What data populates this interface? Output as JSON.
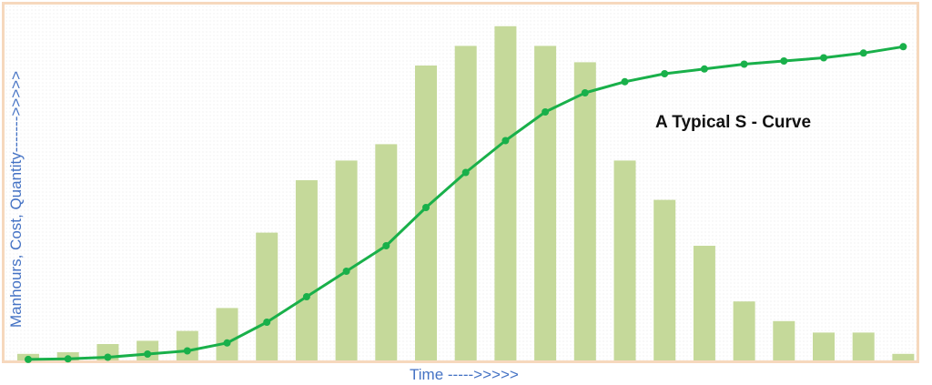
{
  "chart_data": {
    "type": "bar",
    "title": "",
    "xlabel": "Time ----->>>>>",
    "ylabel": "Manhours, Cost, Quantity------->>>>>",
    "annotation": "A Typical S - Curve",
    "grid": false,
    "ylim": [
      0,
      100
    ],
    "x": [
      1,
      2,
      3,
      4,
      5,
      6,
      7,
      8,
      9,
      10,
      11,
      12,
      13,
      14,
      15,
      16,
      17,
      18,
      19,
      20,
      21,
      22,
      23
    ],
    "series": [
      {
        "type": "bar",
        "values": [
          2,
          2.5,
          5,
          6,
          9,
          16,
          39,
          55,
          61,
          66,
          90,
          96,
          102,
          96,
          91,
          61,
          49,
          35,
          18,
          12,
          8.5,
          8.5,
          2
        ],
        "color": "#c5d99a"
      },
      {
        "type": "line",
        "values": [
          0.3,
          0.5,
          1,
          2,
          3,
          5.5,
          12,
          20,
          28,
          36,
          48,
          59,
          69,
          78,
          84,
          87.5,
          90,
          91.5,
          93,
          94,
          95,
          96.5,
          98.5
        ],
        "color": "#19b04a"
      }
    ],
    "colors": {
      "frame": "#f6d8bd",
      "bars": "#c5d99a",
      "curve": "#19b04a",
      "axis_text": "#4472c4"
    }
  }
}
